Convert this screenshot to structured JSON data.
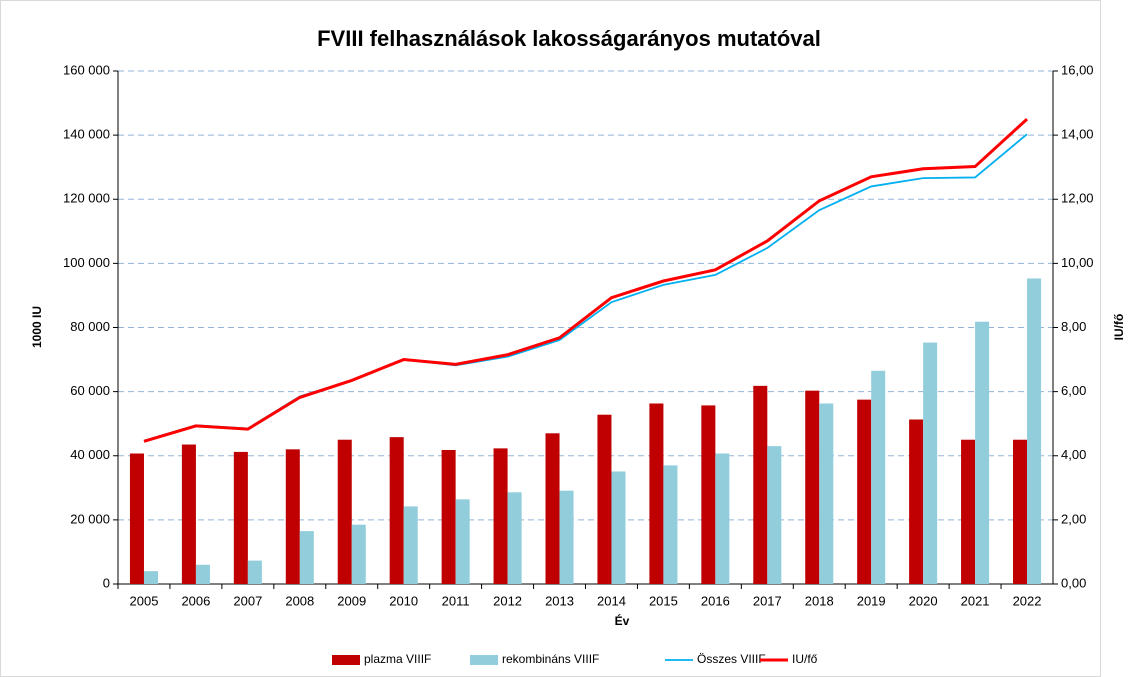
{
  "chart_data": {
    "type": "bar",
    "title": "FVIII felhasználások lakosságarányos mutatóval",
    "x_label": "Év",
    "y_label": "1000 IU",
    "y2_label": "IU/fő",
    "categories": [
      "2005",
      "2006",
      "2007",
      "2008",
      "2009",
      "2010",
      "2011",
      "2012",
      "2013",
      "2014",
      "2015",
      "2016",
      "2017",
      "2018",
      "2019",
      "2020",
      "2021",
      "2022"
    ],
    "series": [
      {
        "name": "plazma VIIIF",
        "color": "#c00000",
        "kind": "bar",
        "values": [
          40700,
          43500,
          41200,
          42000,
          45000,
          45800,
          41800,
          42300,
          47000,
          52800,
          56300,
          55700,
          61800,
          60300,
          57500,
          51300,
          45000,
          45000
        ]
      },
      {
        "name": "rekombináns VIIIF",
        "color": "#92cddc",
        "kind": "bar",
        "values": [
          4000,
          6000,
          7300,
          16500,
          18500,
          24200,
          26400,
          28600,
          29100,
          35100,
          37000,
          40700,
          43000,
          56300,
          66500,
          75300,
          81800,
          95300
        ]
      },
      {
        "name": "Összes VIIIF",
        "color": "#00b0f0",
        "kind": "line",
        "values": [
          44700,
          49500,
          48500,
          58500,
          63500,
          70000,
          68200,
          70900,
          76100,
          87900,
          93300,
          96400,
          104800,
          116600,
          124000,
          126600,
          126800,
          140300
        ]
      },
      {
        "name": "IU/fő",
        "color": "#ff0000",
        "kind": "line",
        "axis": "y2",
        "values": [
          4.45,
          4.93,
          4.83,
          5.82,
          6.35,
          7.0,
          6.85,
          7.15,
          7.68,
          8.93,
          9.45,
          9.8,
          10.7,
          11.95,
          12.7,
          12.95,
          13.02,
          14.5
        ]
      }
    ],
    "ylim": [
      0,
      160000
    ],
    "yticks": [
      {
        "value": 0,
        "label": "0"
      },
      {
        "value": 20000,
        "label": "20 000"
      },
      {
        "value": 40000,
        "label": "40 000"
      },
      {
        "value": 60000,
        "label": "60 000"
      },
      {
        "value": 80000,
        "label": "80 000"
      },
      {
        "value": 100000,
        "label": "100 000"
      },
      {
        "value": 120000,
        "label": "120 000"
      },
      {
        "value": 140000,
        "label": "140 000"
      },
      {
        "value": 160000,
        "label": "160 000"
      }
    ],
    "y2lim": [
      0,
      16
    ],
    "y2ticks": [
      {
        "value": 0,
        "label": "0,00"
      },
      {
        "value": 2,
        "label": "2,00"
      },
      {
        "value": 4,
        "label": "4,00"
      },
      {
        "value": 6,
        "label": "6,00"
      },
      {
        "value": 8,
        "label": "8,00"
      },
      {
        "value": 10,
        "label": "10,00"
      },
      {
        "value": 12,
        "label": "12,00"
      },
      {
        "value": 14,
        "label": "14,00"
      },
      {
        "value": 16,
        "label": "16,00"
      }
    ],
    "grid": true,
    "legend": "bottom"
  }
}
